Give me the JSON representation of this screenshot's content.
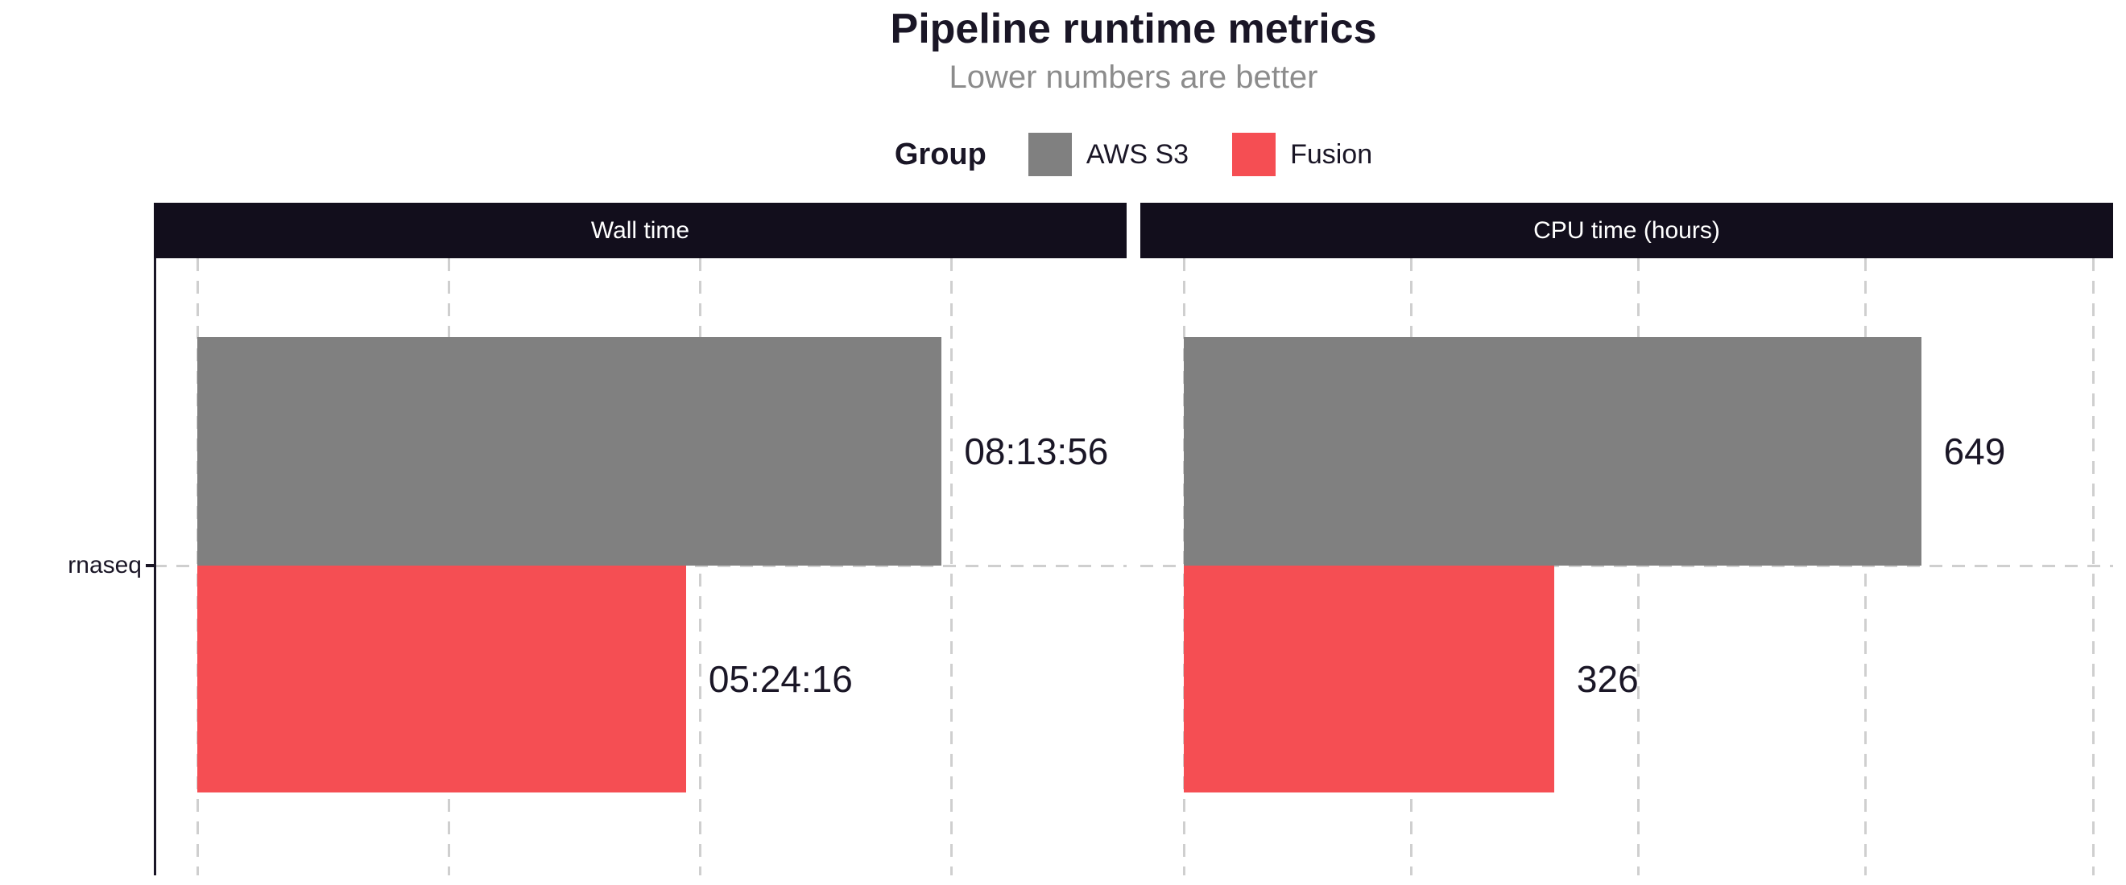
{
  "title": "Pipeline runtime metrics",
  "subtitle": "Lower numbers are better",
  "legend": {
    "label": "Group",
    "items": [
      {
        "name": "AWS S3",
        "color": "#808080"
      },
      {
        "name": "Fusion",
        "color": "#f54e53"
      }
    ]
  },
  "chart_data": {
    "type": "bar",
    "orientation": "horizontal",
    "categories": [
      "rnaseq"
    ],
    "legend_position": "top",
    "grid": "dashed-vertical",
    "colors": {
      "AWS S3": "#808080",
      "Fusion": "#f54e53"
    },
    "panels": [
      {
        "title": "Wall time",
        "unit": "seconds",
        "axis_max": 37000,
        "gridlines": [
          0,
          10000,
          20000,
          30000
        ],
        "series": [
          {
            "group": "AWS S3",
            "value": 29636,
            "label": "08:13:56"
          },
          {
            "group": "Fusion",
            "value": 19456,
            "label": "05:24:16"
          }
        ]
      },
      {
        "title": "CPU time (hours)",
        "unit": "hours",
        "axis_max": 818,
        "gridlines": [
          0,
          200,
          400,
          600,
          800
        ],
        "series": [
          {
            "group": "AWS S3",
            "value": 649,
            "label": "649"
          },
          {
            "group": "Fusion",
            "value": 326,
            "label": "326"
          }
        ]
      }
    ]
  },
  "style_colors": {
    "header_bg": "#120e1c",
    "text": "#1a1626",
    "subtitle": "#8c8c8c",
    "gridline": "#cfcfcf",
    "background": "#ffffff"
  }
}
